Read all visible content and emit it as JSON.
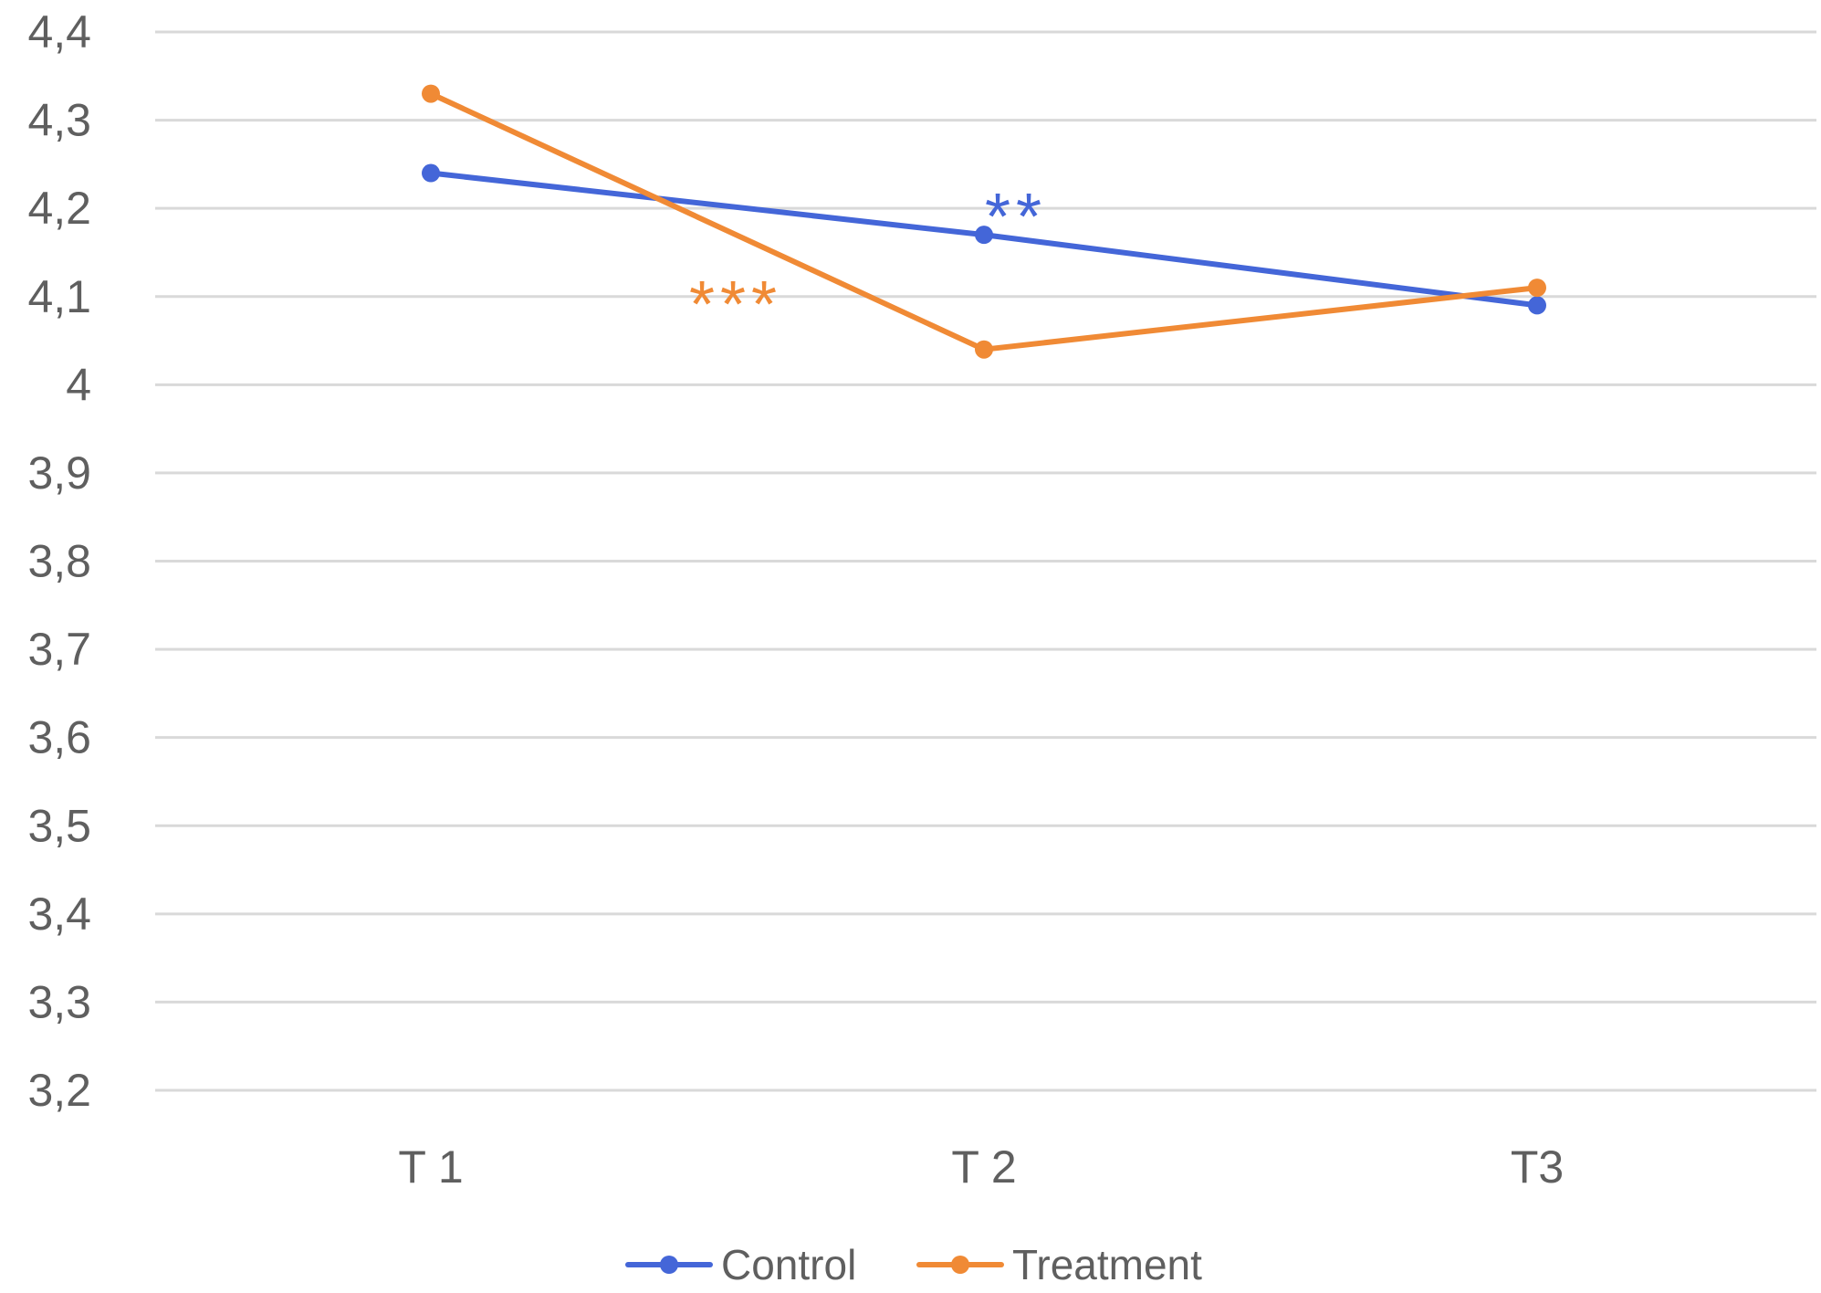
{
  "chart_data": {
    "type": "line",
    "title": "",
    "xlabel": "",
    "ylabel": "",
    "categories": [
      "T 1",
      "T 2",
      "T3"
    ],
    "ylim": [
      3.2,
      4.4
    ],
    "yticks": [
      4.4,
      4.3,
      4.2,
      4.1,
      4.0,
      3.9,
      3.8,
      3.7,
      3.6,
      3.5,
      3.4,
      3.3,
      3.2
    ],
    "ytick_labels": [
      "4,4",
      "4,3",
      "4,2",
      "4,1",
      "4",
      "3,9",
      "3,8",
      "3,7",
      "3,6",
      "3,5",
      "3,4",
      "3,3",
      "3,2"
    ],
    "grid": true,
    "legend_position": "bottom-center",
    "series": [
      {
        "name": "Control",
        "color": "#4466d8",
        "values": [
          4.24,
          4.17,
          4.09
        ]
      },
      {
        "name": "Treatment",
        "color": "#f08a35",
        "values": [
          4.33,
          4.04,
          4.11
        ]
      }
    ],
    "annotations": [
      {
        "text": "**",
        "series": "Control",
        "between": [
          "T 1",
          "T 2"
        ],
        "color": "#4466d8"
      },
      {
        "text": "***",
        "series": "Treatment",
        "between": [
          "T 1",
          "T 2"
        ],
        "color": "#f08a35"
      }
    ]
  }
}
